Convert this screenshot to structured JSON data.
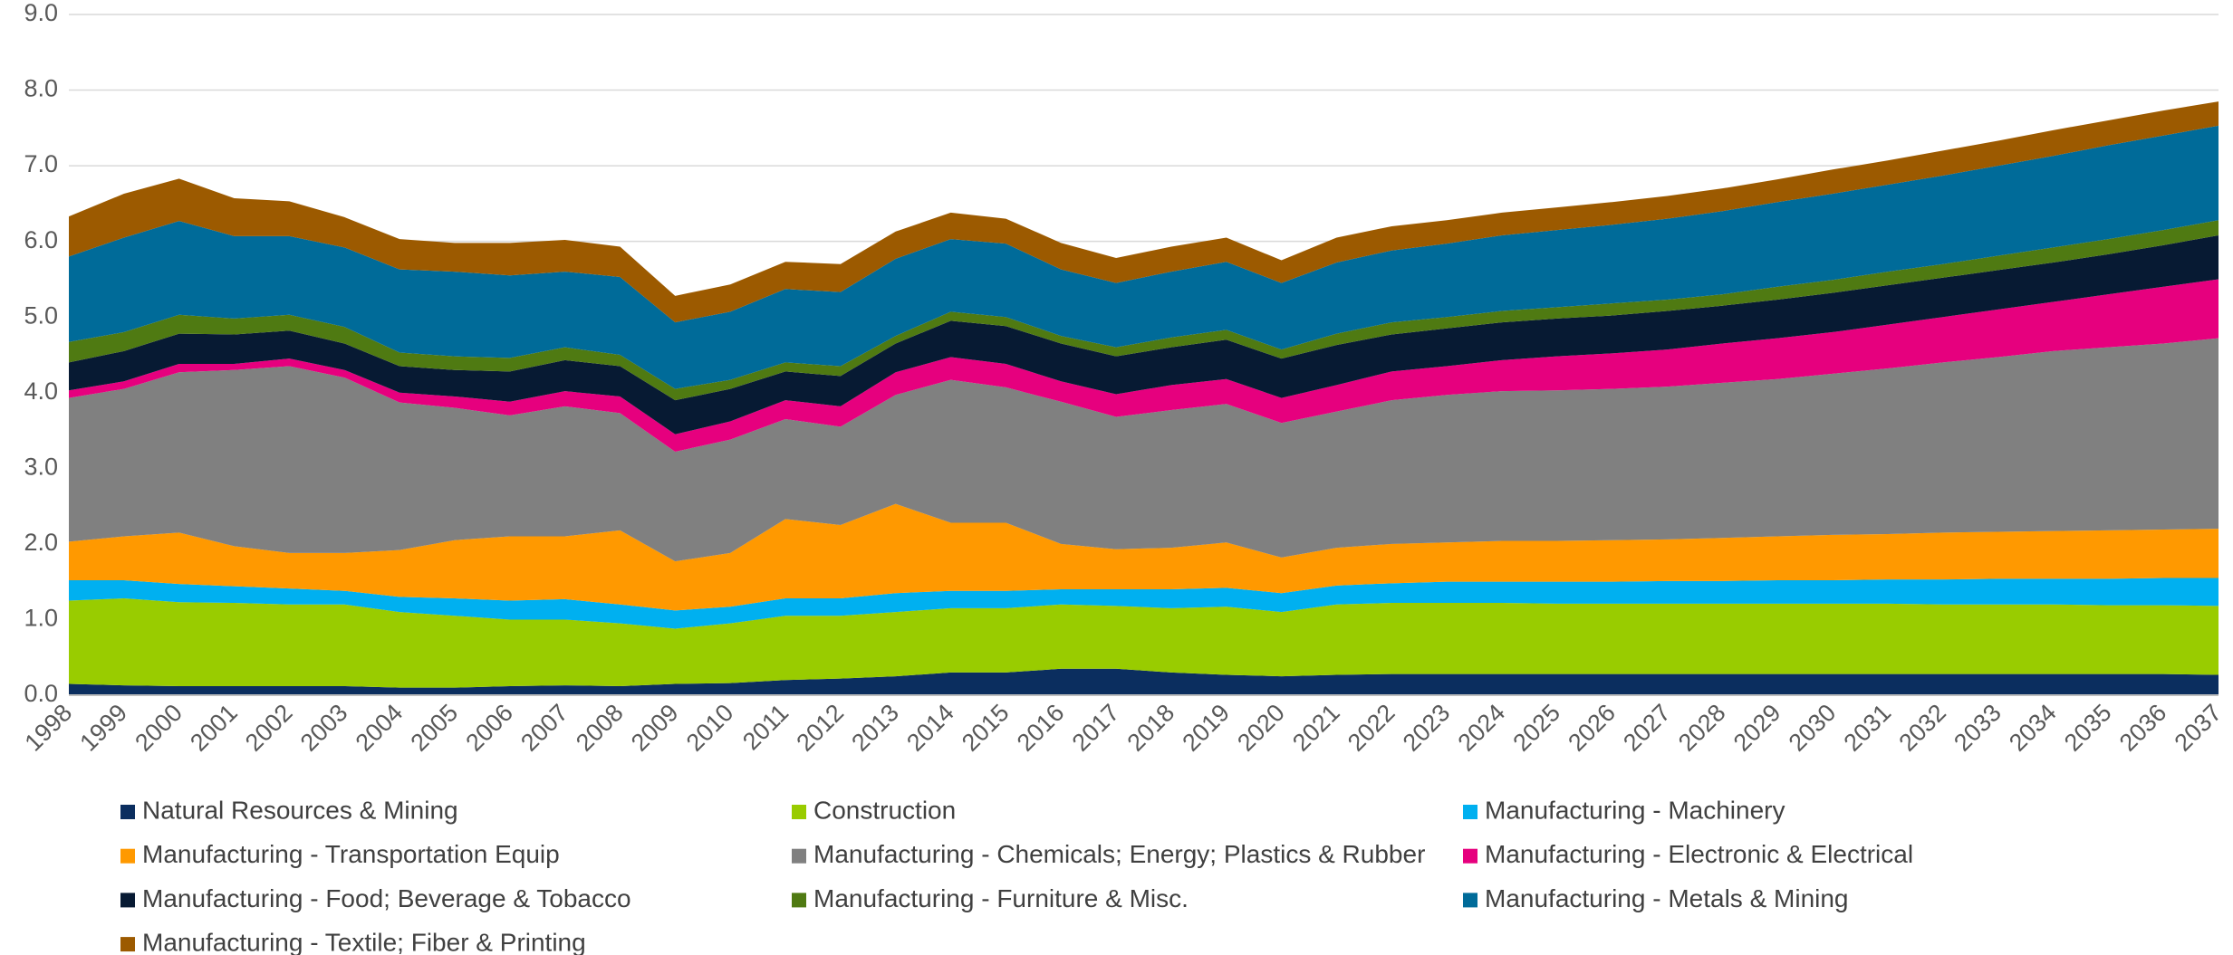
{
  "chart_data": {
    "type": "stacked-area",
    "categories": [
      "1998",
      "1999",
      "2000",
      "2001",
      "2002",
      "2003",
      "2004",
      "2005",
      "2006",
      "2007",
      "2008",
      "2009",
      "2010",
      "2011",
      "2012",
      "2013",
      "2014",
      "2015",
      "2016",
      "2017",
      "2018",
      "2019",
      "2020",
      "2021",
      "2022",
      "2023",
      "2024",
      "2025",
      "2026",
      "2027",
      "2028",
      "2029",
      "2030",
      "2031",
      "2032",
      "2033",
      "2034",
      "2035",
      "2036",
      "2037"
    ],
    "ylim": [
      0,
      9
    ],
    "yticks": [
      {
        "value": 0,
        "label": "0.0"
      },
      {
        "value": 1,
        "label": "1.0"
      },
      {
        "value": 2,
        "label": "2.0"
      },
      {
        "value": 3,
        "label": "3.0"
      },
      {
        "value": 4,
        "label": "4.0"
      },
      {
        "value": 5,
        "label": "5.0"
      },
      {
        "value": 6,
        "label": "6.0"
      },
      {
        "value": 7,
        "label": "7.0"
      },
      {
        "value": 8,
        "label": "8.0"
      },
      {
        "value": 9,
        "label": "9.0"
      }
    ],
    "grid": true,
    "series": [
      {
        "name": "Natural Resources & Mining",
        "color": "#0b2e5f",
        "values": [
          0.15,
          0.13,
          0.12,
          0.12,
          0.12,
          0.12,
          0.1,
          0.1,
          0.12,
          0.13,
          0.12,
          0.15,
          0.16,
          0.2,
          0.22,
          0.25,
          0.3,
          0.3,
          0.35,
          0.35,
          0.3,
          0.27,
          0.25,
          0.27,
          0.28,
          0.28,
          0.28,
          0.28,
          0.28,
          0.28,
          0.28,
          0.28,
          0.28,
          0.28,
          0.28,
          0.28,
          0.28,
          0.28,
          0.28,
          0.27
        ]
      },
      {
        "name": "Construction",
        "color": "#99cc00",
        "values": [
          1.1,
          1.15,
          1.11,
          1.1,
          1.08,
          1.08,
          1.0,
          0.95,
          0.88,
          0.87,
          0.83,
          0.73,
          0.79,
          0.85,
          0.83,
          0.85,
          0.85,
          0.85,
          0.85,
          0.83,
          0.85,
          0.9,
          0.85,
          0.93,
          0.94,
          0.94,
          0.94,
          0.93,
          0.93,
          0.93,
          0.93,
          0.93,
          0.93,
          0.93,
          0.92,
          0.92,
          0.92,
          0.91,
          0.91,
          0.91
        ]
      },
      {
        "name": "Manufacturing - Machinery",
        "color": "#00b0f0",
        "values": [
          0.27,
          0.24,
          0.24,
          0.22,
          0.21,
          0.18,
          0.2,
          0.23,
          0.25,
          0.27,
          0.25,
          0.24,
          0.22,
          0.23,
          0.23,
          0.25,
          0.23,
          0.23,
          0.2,
          0.22,
          0.25,
          0.25,
          0.25,
          0.25,
          0.26,
          0.28,
          0.28,
          0.29,
          0.29,
          0.3,
          0.3,
          0.31,
          0.31,
          0.32,
          0.33,
          0.34,
          0.34,
          0.35,
          0.36,
          0.37
        ]
      },
      {
        "name": "Manufacturing - Transportation Equip",
        "color": "#ff9900",
        "values": [
          0.51,
          0.58,
          0.68,
          0.53,
          0.47,
          0.5,
          0.62,
          0.77,
          0.85,
          0.83,
          0.98,
          0.65,
          0.71,
          1.05,
          0.97,
          1.18,
          0.9,
          0.9,
          0.6,
          0.53,
          0.55,
          0.6,
          0.47,
          0.5,
          0.52,
          0.52,
          0.54,
          0.54,
          0.55,
          0.55,
          0.57,
          0.58,
          0.6,
          0.6,
          0.62,
          0.62,
          0.63,
          0.64,
          0.64,
          0.65
        ]
      },
      {
        "name": "Manufacturing - Chemicals; Energy; Plastics & Rubber",
        "color": "#808080",
        "values": [
          1.9,
          1.95,
          2.12,
          2.33,
          2.47,
          2.32,
          1.95,
          1.75,
          1.6,
          1.72,
          1.55,
          1.45,
          1.5,
          1.32,
          1.3,
          1.44,
          1.89,
          1.79,
          1.88,
          1.75,
          1.82,
          1.83,
          1.78,
          1.8,
          1.9,
          1.95,
          1.98,
          1.99,
          2.0,
          2.02,
          2.05,
          2.08,
          2.13,
          2.19,
          2.25,
          2.31,
          2.38,
          2.42,
          2.46,
          2.52
        ]
      },
      {
        "name": "Manufacturing - Electronic & Electrical",
        "color": "#e6007e",
        "values": [
          0.1,
          0.1,
          0.11,
          0.08,
          0.1,
          0.1,
          0.13,
          0.15,
          0.18,
          0.2,
          0.22,
          0.23,
          0.24,
          0.25,
          0.27,
          0.3,
          0.3,
          0.31,
          0.27,
          0.3,
          0.33,
          0.33,
          0.33,
          0.35,
          0.38,
          0.38,
          0.41,
          0.45,
          0.47,
          0.49,
          0.52,
          0.54,
          0.55,
          0.58,
          0.6,
          0.63,
          0.65,
          0.7,
          0.75,
          0.78
        ]
      },
      {
        "name": "Manufacturing - Food; Beverage & Tobacco",
        "color": "#071a33",
        "values": [
          0.37,
          0.4,
          0.4,
          0.39,
          0.37,
          0.35,
          0.35,
          0.35,
          0.4,
          0.41,
          0.4,
          0.45,
          0.43,
          0.38,
          0.4,
          0.38,
          0.48,
          0.5,
          0.5,
          0.5,
          0.5,
          0.52,
          0.52,
          0.53,
          0.49,
          0.5,
          0.5,
          0.5,
          0.5,
          0.51,
          0.5,
          0.51,
          0.52,
          0.52,
          0.52,
          0.52,
          0.52,
          0.53,
          0.55,
          0.58
        ]
      },
      {
        "name": "Manufacturing - Furniture & Misc.",
        "color": "#4f7a12",
        "values": [
          0.27,
          0.25,
          0.25,
          0.21,
          0.21,
          0.22,
          0.18,
          0.18,
          0.18,
          0.17,
          0.15,
          0.15,
          0.12,
          0.12,
          0.13,
          0.1,
          0.12,
          0.12,
          0.1,
          0.12,
          0.13,
          0.13,
          0.12,
          0.15,
          0.16,
          0.15,
          0.15,
          0.15,
          0.16,
          0.15,
          0.15,
          0.17,
          0.17,
          0.18,
          0.18,
          0.19,
          0.2,
          0.2,
          0.2,
          0.2
        ]
      },
      {
        "name": "Manufacturing - Metals & Mining",
        "color": "#006b99",
        "values": [
          1.13,
          1.25,
          1.24,
          1.09,
          1.04,
          1.05,
          1.1,
          1.12,
          1.09,
          1.0,
          1.03,
          0.88,
          0.9,
          0.97,
          0.98,
          1.02,
          0.96,
          0.97,
          0.88,
          0.85,
          0.87,
          0.9,
          0.88,
          0.94,
          0.95,
          0.97,
          1.0,
          1.02,
          1.04,
          1.07,
          1.1,
          1.12,
          1.14,
          1.15,
          1.17,
          1.19,
          1.21,
          1.24,
          1.25,
          1.25
        ]
      },
      {
        "name": "Manufacturing - Textile; Fiber & Printing",
        "color": "#9c5a00",
        "values": [
          0.53,
          0.58,
          0.56,
          0.5,
          0.46,
          0.4,
          0.4,
          0.38,
          0.43,
          0.42,
          0.4,
          0.35,
          0.36,
          0.36,
          0.37,
          0.36,
          0.35,
          0.33,
          0.35,
          0.33,
          0.33,
          0.32,
          0.3,
          0.33,
          0.32,
          0.31,
          0.3,
          0.3,
          0.3,
          0.3,
          0.3,
          0.3,
          0.32,
          0.32,
          0.33,
          0.33,
          0.34,
          0.33,
          0.33,
          0.32
        ]
      }
    ]
  }
}
